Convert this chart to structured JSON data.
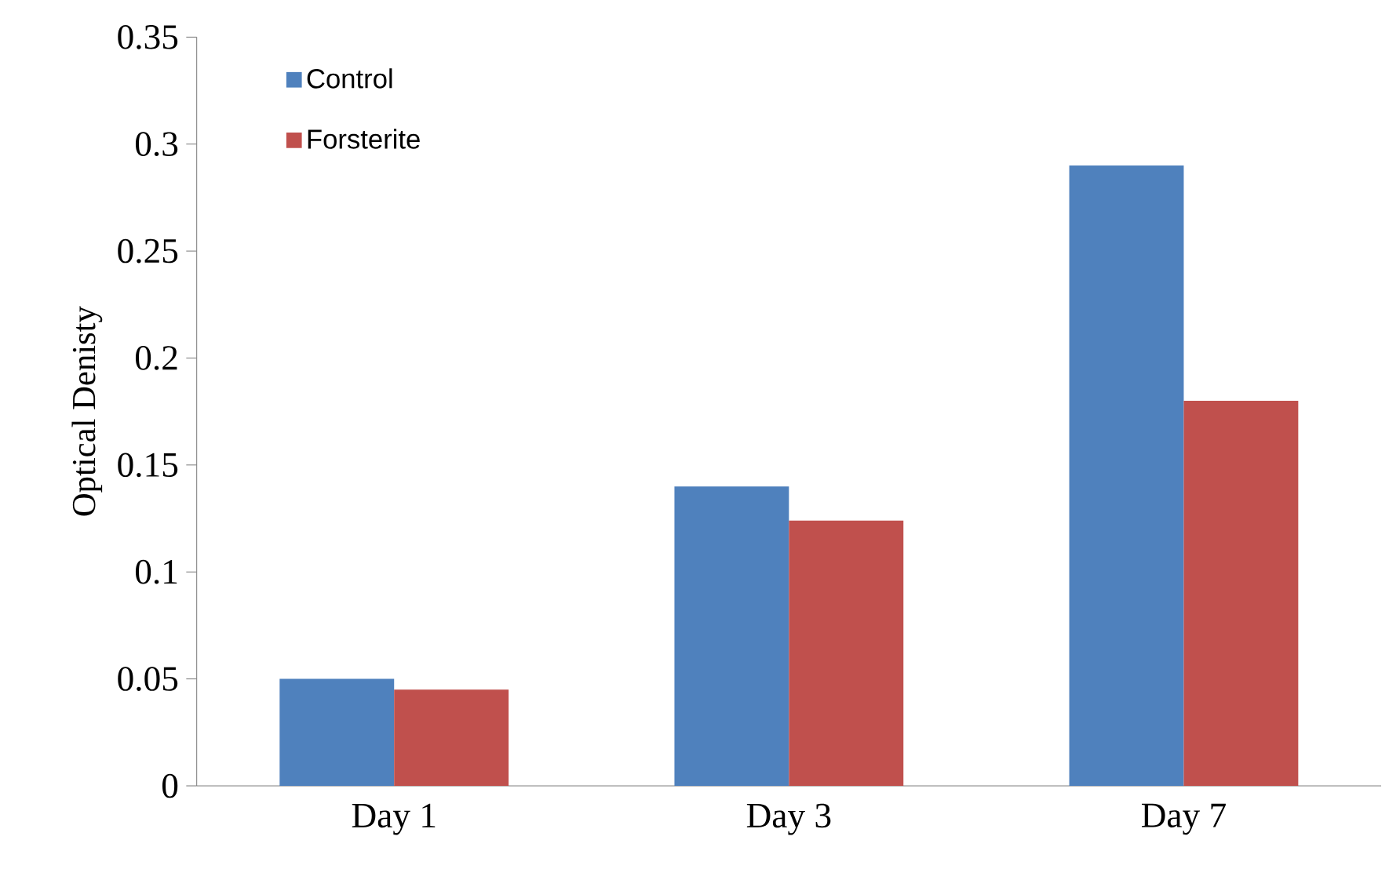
{
  "chart_data": {
    "type": "bar",
    "ylabel": "Optical Denisty",
    "categories": [
      "Day 1",
      "Day 3",
      "Day 7"
    ],
    "series": [
      {
        "name": "Control",
        "color": "#4f81bd",
        "values": [
          0.05,
          0.14,
          0.29
        ]
      },
      {
        "name": "Forsterite",
        "color": "#c0504d",
        "values": [
          0.045,
          0.124,
          0.18
        ]
      }
    ],
    "ylim": [
      0,
      0.35
    ],
    "yticks": [
      0,
      0.05,
      0.1,
      0.15,
      0.2,
      0.25,
      0.3,
      0.35
    ],
    "legend": "top left"
  }
}
